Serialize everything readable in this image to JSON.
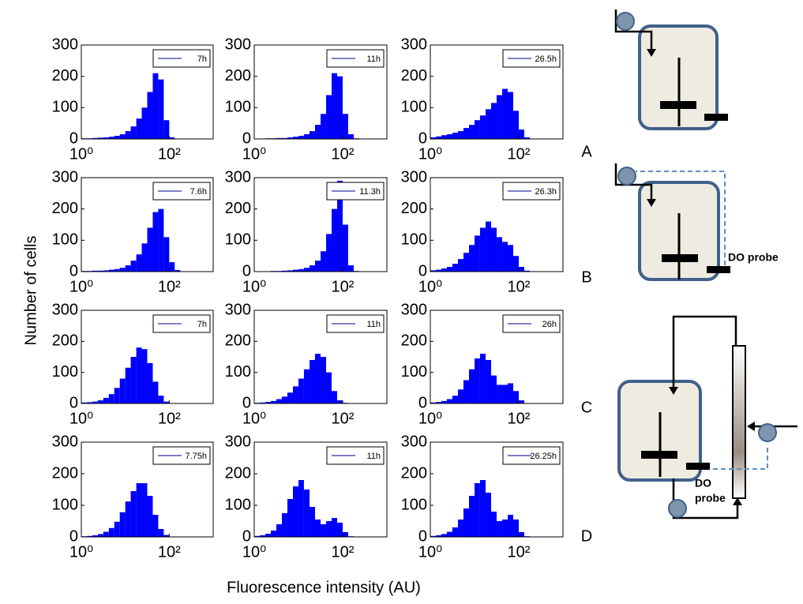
{
  "figure": {
    "y_label": "Number of cells",
    "x_label": "Fluorescence intensity (AU)",
    "row_labels": [
      "A",
      "B",
      "C",
      "D"
    ],
    "diagram_labels": {
      "b_probe": "DO probe",
      "c_do": "DO",
      "c_probe": "probe"
    }
  },
  "chart_data": [
    {
      "type": "histogram",
      "bins": [
        1,
        1.33,
        1.78,
        2.37,
        3.16,
        4.22,
        5.62,
        7.5,
        10,
        13.3,
        17.8,
        23.7,
        31.6,
        42.2,
        56.2,
        75,
        100,
        133,
        178,
        237,
        316,
        422
      ],
      "series": [
        {
          "name": "7h",
          "color": "#0000ff",
          "values": [
            2,
            2,
            3,
            4,
            5,
            7,
            10,
            15,
            25,
            40,
            65,
            100,
            150,
            210,
            190,
            60,
            5,
            0,
            0,
            0,
            0
          ]
        }
      ],
      "xlim": [
        1,
        1000
      ],
      "ylim": [
        0,
        300
      ],
      "yticks": [
        0,
        100,
        200,
        300
      ],
      "xticks": [
        {
          "value": 1,
          "label": "10⁰"
        },
        {
          "value": 100,
          "label": "10²"
        }
      ],
      "log_x": true
    },
    {
      "type": "histogram",
      "bins": [
        1,
        1.33,
        1.78,
        2.37,
        3.16,
        4.22,
        5.62,
        7.5,
        10,
        13.3,
        17.8,
        23.7,
        31.6,
        42.2,
        56.2,
        75,
        100,
        133,
        178,
        237,
        316,
        422
      ],
      "series": [
        {
          "name": "11h",
          "color": "#0000ff",
          "values": [
            1,
            1,
            2,
            2,
            3,
            3,
            5,
            7,
            10,
            15,
            25,
            45,
            80,
            140,
            210,
            200,
            80,
            15,
            2,
            0,
            0
          ]
        }
      ],
      "xlim": [
        1,
        1000
      ],
      "ylim": [
        0,
        300
      ],
      "yticks": [
        0,
        100,
        200,
        300
      ],
      "xticks": [
        {
          "value": 1,
          "label": "10⁰"
        },
        {
          "value": 100,
          "label": "10²"
        }
      ],
      "log_x": true
    },
    {
      "type": "histogram",
      "bins": [
        1,
        1.33,
        1.78,
        2.37,
        3.16,
        4.22,
        5.62,
        7.5,
        10,
        13.3,
        17.8,
        23.7,
        31.6,
        42.2,
        56.2,
        75,
        100,
        133,
        178,
        237,
        316,
        422
      ],
      "series": [
        {
          "name": "26.5h",
          "color": "#0000ff",
          "values": [
            5,
            8,
            12,
            15,
            20,
            25,
            35,
            45,
            60,
            75,
            95,
            115,
            140,
            160,
            150,
            90,
            30,
            5,
            0,
            0,
            0
          ]
        }
      ],
      "xlim": [
        1,
        1000
      ],
      "ylim": [
        0,
        300
      ],
      "yticks": [
        0,
        100,
        200,
        300
      ],
      "xticks": [
        {
          "value": 1,
          "label": "10⁰"
        },
        {
          "value": 100,
          "label": "10²"
        }
      ],
      "log_x": true
    },
    {
      "type": "histogram",
      "bins": [
        1,
        1.33,
        1.78,
        2.37,
        3.16,
        4.22,
        5.62,
        7.5,
        10,
        13.3,
        17.8,
        23.7,
        31.6,
        42.2,
        56.2,
        75,
        100,
        133,
        178,
        237,
        316,
        422
      ],
      "series": [
        {
          "name": "7.6h",
          "color": "#0000ff",
          "values": [
            2,
            2,
            3,
            3,
            4,
            6,
            8,
            12,
            20,
            35,
            55,
            90,
            140,
            190,
            200,
            110,
            30,
            5,
            0,
            0,
            0
          ]
        }
      ],
      "xlim": [
        1,
        1000
      ],
      "ylim": [
        0,
        300
      ],
      "yticks": [
        0,
        100,
        200,
        300
      ],
      "xticks": [
        {
          "value": 1,
          "label": "10⁰"
        },
        {
          "value": 100,
          "label": "10²"
        }
      ],
      "log_x": true
    },
    {
      "type": "histogram",
      "bins": [
        1,
        1.33,
        1.78,
        2.37,
        3.16,
        4.22,
        5.62,
        7.5,
        10,
        13.3,
        17.8,
        23.7,
        31.6,
        42.2,
        56.2,
        75,
        100,
        133,
        178,
        237,
        316,
        422
      ],
      "series": [
        {
          "name": "11.3h",
          "color": "#0000ff",
          "values": [
            1,
            1,
            1,
            2,
            2,
            3,
            4,
            6,
            8,
            12,
            20,
            35,
            65,
            120,
            200,
            290,
            150,
            20,
            2,
            0,
            0
          ]
        }
      ],
      "xlim": [
        1,
        1000
      ],
      "ylim": [
        0,
        300
      ],
      "yticks": [
        0,
        100,
        200,
        300
      ],
      "xticks": [
        {
          "value": 1,
          "label": "10⁰"
        },
        {
          "value": 100,
          "label": "10²"
        }
      ],
      "log_x": true
    },
    {
      "type": "histogram",
      "bins": [
        1,
        1.33,
        1.78,
        2.37,
        3.16,
        4.22,
        5.62,
        7.5,
        10,
        13.3,
        17.8,
        23.7,
        31.6,
        42.2,
        56.2,
        75,
        100,
        133,
        178,
        237,
        316,
        422
      ],
      "series": [
        {
          "name": "26.3h",
          "color": "#0000ff",
          "values": [
            4,
            6,
            10,
            15,
            25,
            40,
            60,
            85,
            115,
            140,
            160,
            140,
            110,
            95,
            85,
            50,
            15,
            3,
            0,
            0,
            0
          ]
        }
      ],
      "xlim": [
        1,
        1000
      ],
      "ylim": [
        0,
        300
      ],
      "yticks": [
        0,
        100,
        200,
        300
      ],
      "xticks": [
        {
          "value": 1,
          "label": "10⁰"
        },
        {
          "value": 100,
          "label": "10²"
        }
      ],
      "log_x": true
    },
    {
      "type": "histogram",
      "bins": [
        1,
        1.33,
        1.78,
        2.37,
        3.16,
        4.22,
        5.62,
        7.5,
        10,
        13.3,
        17.8,
        23.7,
        31.6,
        42.2,
        56.2,
        75,
        100,
        133,
        178,
        237,
        316,
        422
      ],
      "series": [
        {
          "name": "7h",
          "color": "#0000ff",
          "values": [
            3,
            4,
            6,
            10,
            18,
            30,
            50,
            80,
            115,
            150,
            180,
            175,
            130,
            70,
            25,
            6,
            1,
            0,
            0,
            0,
            0
          ]
        }
      ],
      "xlim": [
        1,
        1000
      ],
      "ylim": [
        0,
        300
      ],
      "yticks": [
        0,
        100,
        200,
        300
      ],
      "xticks": [
        {
          "value": 1,
          "label": "10⁰"
        },
        {
          "value": 100,
          "label": "10²"
        }
      ],
      "log_x": true
    },
    {
      "type": "histogram",
      "bins": [
        1,
        1.33,
        1.78,
        2.37,
        3.16,
        4.22,
        5.62,
        7.5,
        10,
        13.3,
        17.8,
        23.7,
        31.6,
        42.2,
        56.2,
        75,
        100,
        133,
        178,
        237,
        316,
        422
      ],
      "series": [
        {
          "name": "11h",
          "color": "#0000ff",
          "values": [
            2,
            3,
            5,
            8,
            14,
            22,
            35,
            55,
            80,
            110,
            140,
            160,
            150,
            100,
            40,
            10,
            2,
            0,
            0,
            0,
            0
          ]
        }
      ],
      "xlim": [
        1,
        1000
      ],
      "ylim": [
        0,
        300
      ],
      "yticks": [
        0,
        100,
        200,
        300
      ],
      "xticks": [
        {
          "value": 1,
          "label": "10⁰"
        },
        {
          "value": 100,
          "label": "10²"
        }
      ],
      "log_x": true
    },
    {
      "type": "histogram",
      "bins": [
        1,
        1.33,
        1.78,
        2.37,
        3.16,
        4.22,
        5.62,
        7.5,
        10,
        13.3,
        17.8,
        23.7,
        31.6,
        42.2,
        56.2,
        75,
        100,
        133,
        178,
        237,
        316,
        422
      ],
      "series": [
        {
          "name": "26h",
          "color": "#0000ff",
          "values": [
            3,
            5,
            8,
            14,
            25,
            45,
            75,
            110,
            145,
            160,
            140,
            90,
            60,
            60,
            65,
            40,
            10,
            1,
            0,
            0,
            0
          ]
        }
      ],
      "xlim": [
        1,
        1000
      ],
      "ylim": [
        0,
        300
      ],
      "yticks": [
        0,
        100,
        200,
        300
      ],
      "xticks": [
        {
          "value": 1,
          "label": "10⁰"
        },
        {
          "value": 100,
          "label": "10²"
        }
      ],
      "log_x": true
    },
    {
      "type": "histogram",
      "bins": [
        1,
        1.33,
        1.78,
        2.37,
        3.16,
        4.22,
        5.62,
        7.5,
        10,
        13.3,
        17.8,
        23.7,
        31.6,
        42.2,
        56.2,
        75,
        100,
        133,
        178,
        237,
        316,
        422
      ],
      "series": [
        {
          "name": "7.75h",
          "color": "#0000ff",
          "values": [
            2,
            3,
            5,
            9,
            16,
            28,
            48,
            78,
            112,
            145,
            170,
            170,
            130,
            70,
            25,
            6,
            1,
            0,
            0,
            0,
            0
          ]
        }
      ],
      "xlim": [
        1,
        1000
      ],
      "ylim": [
        0,
        300
      ],
      "yticks": [
        0,
        100,
        200,
        300
      ],
      "xticks": [
        {
          "value": 1,
          "label": "10⁰"
        },
        {
          "value": 100,
          "label": "10²"
        }
      ],
      "log_x": true
    },
    {
      "type": "histogram",
      "bins": [
        1,
        1.33,
        1.78,
        2.37,
        3.16,
        4.22,
        5.62,
        7.5,
        10,
        13.3,
        17.8,
        23.7,
        31.6,
        42.2,
        56.2,
        75,
        100,
        133,
        178,
        237,
        316,
        422
      ],
      "series": [
        {
          "name": "11h",
          "color": "#0000ff",
          "values": [
            3,
            5,
            10,
            20,
            40,
            75,
            120,
            160,
            180,
            150,
            95,
            55,
            40,
            50,
            60,
            45,
            15,
            2,
            0,
            0,
            0
          ]
        }
      ],
      "xlim": [
        1,
        1000
      ],
      "ylim": [
        0,
        300
      ],
      "yticks": [
        0,
        100,
        200,
        300
      ],
      "xticks": [
        {
          "value": 1,
          "label": "10⁰"
        },
        {
          "value": 100,
          "label": "10²"
        }
      ],
      "log_x": true
    },
    {
      "type": "histogram",
      "bins": [
        1,
        1.33,
        1.78,
        2.37,
        3.16,
        4.22,
        5.62,
        7.5,
        10,
        13.3,
        17.8,
        23.7,
        31.6,
        42.2,
        56.2,
        75,
        100,
        133,
        178,
        237,
        316,
        422
      ],
      "series": [
        {
          "name": "26.25h",
          "color": "#0000ff",
          "values": [
            3,
            5,
            9,
            16,
            30,
            55,
            90,
            130,
            170,
            180,
            140,
            80,
            50,
            55,
            70,
            55,
            15,
            2,
            0,
            0,
            0
          ]
        }
      ],
      "xlim": [
        1,
        1000
      ],
      "ylim": [
        0,
        300
      ],
      "yticks": [
        0,
        100,
        200,
        300
      ],
      "xticks": [
        {
          "value": 1,
          "label": "10⁰"
        },
        {
          "value": 100,
          "label": "10²"
        }
      ],
      "log_x": true
    }
  ]
}
